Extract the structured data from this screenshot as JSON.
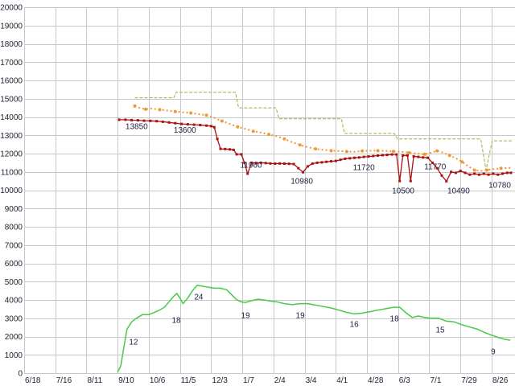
{
  "chart_data": {
    "type": "line",
    "title": "",
    "xlabel": "",
    "ylabel": "",
    "legend": "none",
    "grid": "on",
    "x_tick_labels": [
      "6/18",
      "7/16",
      "8/11",
      "9/10",
      "10/6",
      "11/5",
      "12/3",
      "1/7",
      "2/4",
      "3/4",
      "4/1",
      "4/28",
      "6/3",
      "7/1",
      "7/29",
      "8/26"
    ],
    "y_axis": {
      "min": 0,
      "max": 20000,
      "step": 1000
    },
    "colors": {
      "background": "#ffffff",
      "grid": "#c8c8c8",
      "axis_text": "#222233",
      "label_text": "#222244",
      "highest_price": "#a9a93a",
      "average_price": "#ee9933",
      "lowest_price": "#aa1111",
      "store_count": "#44cc44"
    },
    "series": [
      {
        "name": "highest-price",
        "color": "#a9a93a",
        "width": 1,
        "dash": "4 2",
        "marker": "none",
        "points": [
          [
            3.55,
            15050
          ],
          [
            4.8,
            15050
          ],
          [
            4.88,
            15350
          ],
          [
            6.78,
            15350
          ],
          [
            6.88,
            14500
          ],
          [
            8.08,
            14500
          ],
          [
            8.18,
            13900
          ],
          [
            10.18,
            13900
          ],
          [
            10.28,
            13100
          ],
          [
            11.88,
            13100
          ],
          [
            11.98,
            12800
          ],
          [
            14.65,
            12800
          ],
          [
            14.82,
            11100
          ],
          [
            15.02,
            12700
          ],
          [
            15.65,
            12700
          ]
        ]
      },
      {
        "name": "average-price",
        "color": "#ee9933",
        "width": 2,
        "dash": "2 3",
        "marker": "dot",
        "points": [
          [
            3.55,
            14600
          ],
          [
            3.7,
            14500
          ],
          [
            3.9,
            14420
          ],
          [
            4.1,
            14460
          ],
          [
            4.35,
            14400
          ],
          [
            4.6,
            14350
          ],
          [
            4.85,
            14300
          ],
          [
            5.1,
            14260
          ],
          [
            5.35,
            14220
          ],
          [
            5.6,
            14160
          ],
          [
            5.85,
            14100
          ],
          [
            6.1,
            13950
          ],
          [
            6.35,
            13780
          ],
          [
            6.6,
            13620
          ],
          [
            6.85,
            13460
          ],
          [
            7.1,
            13350
          ],
          [
            7.35,
            13220
          ],
          [
            7.6,
            13150
          ],
          [
            7.85,
            13050
          ],
          [
            8.1,
            12950
          ],
          [
            8.35,
            12800
          ],
          [
            8.6,
            12620
          ],
          [
            8.85,
            12470
          ],
          [
            9.1,
            12350
          ],
          [
            9.35,
            12260
          ],
          [
            9.6,
            12200
          ],
          [
            9.85,
            12160
          ],
          [
            10.1,
            12140
          ],
          [
            10.35,
            12110
          ],
          [
            10.6,
            12100
          ],
          [
            10.85,
            12140
          ],
          [
            11.1,
            12160
          ],
          [
            11.35,
            12160
          ],
          [
            11.6,
            12150
          ],
          [
            11.85,
            12120
          ],
          [
            12.1,
            12100
          ],
          [
            12.35,
            12050
          ],
          [
            12.6,
            12000
          ],
          [
            12.85,
            11960
          ],
          [
            13.05,
            12050
          ],
          [
            13.25,
            12150
          ],
          [
            13.45,
            12050
          ],
          [
            13.65,
            11900
          ],
          [
            13.85,
            11750
          ],
          [
            14.05,
            11550
          ],
          [
            14.25,
            11300
          ],
          [
            14.45,
            11100
          ],
          [
            14.65,
            11050
          ],
          [
            14.85,
            11100
          ],
          [
            15.05,
            11150
          ],
          [
            15.3,
            11200
          ],
          [
            15.6,
            11220
          ]
        ]
      },
      {
        "name": "lowest-price",
        "color": "#aa1111",
        "width": 1.3,
        "dash": "",
        "marker": "square",
        "points": [
          [
            3.05,
            13850
          ],
          [
            3.25,
            13850
          ],
          [
            3.45,
            13830
          ],
          [
            3.65,
            13820
          ],
          [
            3.85,
            13800
          ],
          [
            4.05,
            13790
          ],
          [
            4.25,
            13770
          ],
          [
            4.45,
            13740
          ],
          [
            4.65,
            13700
          ],
          [
            4.85,
            13660
          ],
          [
            5.05,
            13620
          ],
          [
            5.25,
            13600
          ],
          [
            5.45,
            13580
          ],
          [
            5.65,
            13560
          ],
          [
            5.85,
            13530
          ],
          [
            6.0,
            13500
          ],
          [
            6.1,
            13440
          ],
          [
            6.2,
            12800
          ],
          [
            6.3,
            12260
          ],
          [
            6.45,
            12250
          ],
          [
            6.6,
            12230
          ],
          [
            6.72,
            12200
          ],
          [
            6.82,
            11960
          ],
          [
            6.97,
            11960
          ],
          [
            7.07,
            11500
          ],
          [
            7.17,
            10900
          ],
          [
            7.3,
            11500
          ],
          [
            7.45,
            11480
          ],
          [
            7.6,
            11500
          ],
          [
            7.75,
            11480
          ],
          [
            7.9,
            11460
          ],
          [
            8.05,
            11450
          ],
          [
            8.2,
            11460
          ],
          [
            8.35,
            11450
          ],
          [
            8.5,
            11440
          ],
          [
            8.65,
            11430
          ],
          [
            8.8,
            11200
          ],
          [
            8.95,
            10980
          ],
          [
            9.1,
            11300
          ],
          [
            9.25,
            11450
          ],
          [
            9.4,
            11500
          ],
          [
            9.55,
            11520
          ],
          [
            9.7,
            11550
          ],
          [
            9.85,
            11580
          ],
          [
            10.0,
            11600
          ],
          [
            10.15,
            11660
          ],
          [
            10.3,
            11720
          ],
          [
            10.45,
            11740
          ],
          [
            10.6,
            11770
          ],
          [
            10.75,
            11790
          ],
          [
            10.9,
            11820
          ],
          [
            11.05,
            11840
          ],
          [
            11.2,
            11870
          ],
          [
            11.35,
            11890
          ],
          [
            11.5,
            11910
          ],
          [
            11.65,
            11930
          ],
          [
            11.8,
            11950
          ],
          [
            11.95,
            11950
          ],
          [
            12.05,
            10500
          ],
          [
            12.15,
            11900
          ],
          [
            12.3,
            11900
          ],
          [
            12.4,
            10500
          ],
          [
            12.5,
            11850
          ],
          [
            12.65,
            11820
          ],
          [
            12.8,
            11790
          ],
          [
            12.95,
            11770
          ],
          [
            13.1,
            11500
          ],
          [
            13.25,
            11200
          ],
          [
            13.4,
            10800
          ],
          [
            13.55,
            10490
          ],
          [
            13.7,
            11000
          ],
          [
            13.85,
            10950
          ],
          [
            14.0,
            11050
          ],
          [
            14.15,
            10950
          ],
          [
            14.3,
            10850
          ],
          [
            14.45,
            10900
          ],
          [
            14.6,
            10850
          ],
          [
            14.75,
            10900
          ],
          [
            14.9,
            10850
          ],
          [
            15.05,
            10900
          ],
          [
            15.2,
            10850
          ],
          [
            15.35,
            10900
          ],
          [
            15.5,
            10950
          ],
          [
            15.62,
            10950
          ]
        ]
      },
      {
        "name": "store-count",
        "color": "#44cc44",
        "width": 1.5,
        "dash": "",
        "marker": "none",
        "value_scale": 200,
        "points": [
          [
            3.0,
            0.3
          ],
          [
            3.1,
            2
          ],
          [
            3.2,
            7
          ],
          [
            3.3,
            12
          ],
          [
            3.45,
            14
          ],
          [
            3.6,
            15
          ],
          [
            3.8,
            16
          ],
          [
            4.0,
            16
          ],
          [
            4.15,
            16.5
          ],
          [
            4.3,
            17
          ],
          [
            4.5,
            18
          ],
          [
            4.65,
            19.5
          ],
          [
            4.8,
            21
          ],
          [
            4.9,
            21.8
          ],
          [
            5.0,
            20.5
          ],
          [
            5.1,
            19
          ],
          [
            5.25,
            20.5
          ],
          [
            5.4,
            22.5
          ],
          [
            5.55,
            24
          ],
          [
            5.7,
            23.8
          ],
          [
            5.9,
            23.5
          ],
          [
            6.1,
            23.2
          ],
          [
            6.3,
            23.2
          ],
          [
            6.5,
            22.8
          ],
          [
            6.65,
            21.5
          ],
          [
            6.8,
            20.2
          ],
          [
            6.95,
            19.5
          ],
          [
            7.1,
            19.3
          ],
          [
            7.3,
            19.8
          ],
          [
            7.5,
            20.2
          ],
          [
            7.7,
            20.0
          ],
          [
            7.9,
            19.7
          ],
          [
            8.1,
            19.5
          ],
          [
            8.35,
            19.0
          ],
          [
            8.6,
            18.7
          ],
          [
            8.85,
            19.0
          ],
          [
            9.1,
            19.0
          ],
          [
            9.35,
            18.6
          ],
          [
            9.6,
            18.2
          ],
          [
            9.85,
            17.8
          ],
          [
            10.1,
            17.2
          ],
          [
            10.35,
            16.6
          ],
          [
            10.6,
            16.2
          ],
          [
            10.85,
            16.4
          ],
          [
            11.1,
            16.8
          ],
          [
            11.35,
            17.2
          ],
          [
            11.6,
            17.6
          ],
          [
            11.85,
            18.0
          ],
          [
            12.05,
            18.0
          ],
          [
            12.25,
            16.5
          ],
          [
            12.45,
            15.2
          ],
          [
            12.65,
            15.6
          ],
          [
            12.85,
            15.2
          ],
          [
            13.05,
            15.0
          ],
          [
            13.3,
            15.0
          ],
          [
            13.55,
            14.2
          ],
          [
            13.8,
            14.0
          ],
          [
            14.05,
            13.2
          ],
          [
            14.3,
            12.6
          ],
          [
            14.55,
            12.0
          ],
          [
            14.8,
            11.0
          ],
          [
            15.0,
            10.4
          ],
          [
            15.2,
            9.8
          ],
          [
            15.4,
            9.3
          ],
          [
            15.6,
            9.0
          ]
        ]
      }
    ],
    "data_labels": [
      {
        "text": "13850",
        "tick": 3.61,
        "value": 13500
      },
      {
        "text": "13600",
        "tick": 5.16,
        "value": 13300
      },
      {
        "text": "11960",
        "tick": 7.28,
        "value": 11390
      },
      {
        "text": "10980",
        "tick": 8.91,
        "value": 10500
      },
      {
        "text": "11720",
        "tick": 10.9,
        "value": 11250
      },
      {
        "text": "10500",
        "tick": 12.16,
        "value": 9980
      },
      {
        "text": "11770",
        "tick": 13.19,
        "value": 11300
      },
      {
        "text": "10490",
        "tick": 13.94,
        "value": 9980
      },
      {
        "text": "10780",
        "tick": 15.26,
        "value": 10290
      },
      {
        "text": "12",
        "tick": 3.51,
        "value": 1710
      },
      {
        "text": "18",
        "tick": 4.88,
        "value": 2900
      },
      {
        "text": "24",
        "tick": 5.6,
        "value": 4180
      },
      {
        "text": "19",
        "tick": 7.1,
        "value": 3170
      },
      {
        "text": "19",
        "tick": 8.86,
        "value": 3170
      },
      {
        "text": "16",
        "tick": 10.59,
        "value": 2680
      },
      {
        "text": "18",
        "tick": 11.88,
        "value": 2990
      },
      {
        "text": "15",
        "tick": 13.35,
        "value": 2370
      },
      {
        "text": "9",
        "tick": 15.05,
        "value": 1190
      }
    ]
  }
}
